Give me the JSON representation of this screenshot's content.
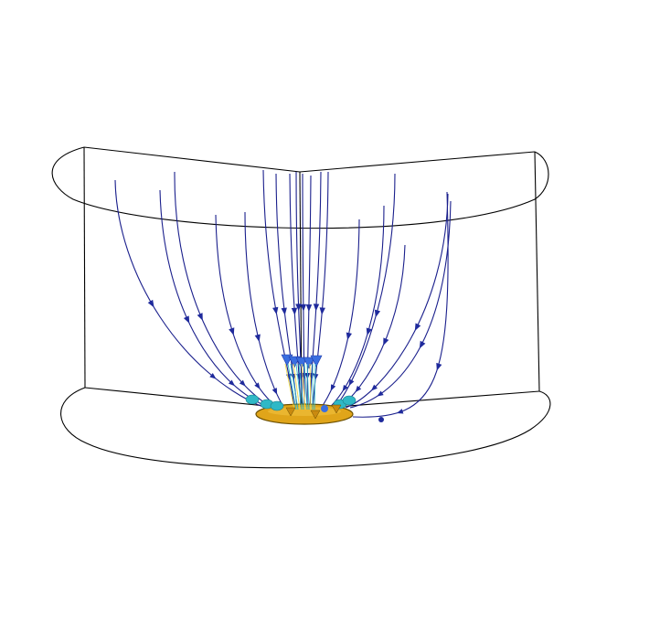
{
  "figure": {
    "kind": "3d-streamline-plot",
    "background": "#ffffff",
    "frame_color": "#000000",
    "streamline_color": "#1a1f8c",
    "arrow_color": "#1f2a9c",
    "outlet_fill": "#e0a51a",
    "outlet_stroke": "#7a5a00",
    "near_outlet_colors": [
      "#2fb8c6",
      "#3a6ee0",
      "#e8d84a"
    ],
    "stream_count": 20
  }
}
